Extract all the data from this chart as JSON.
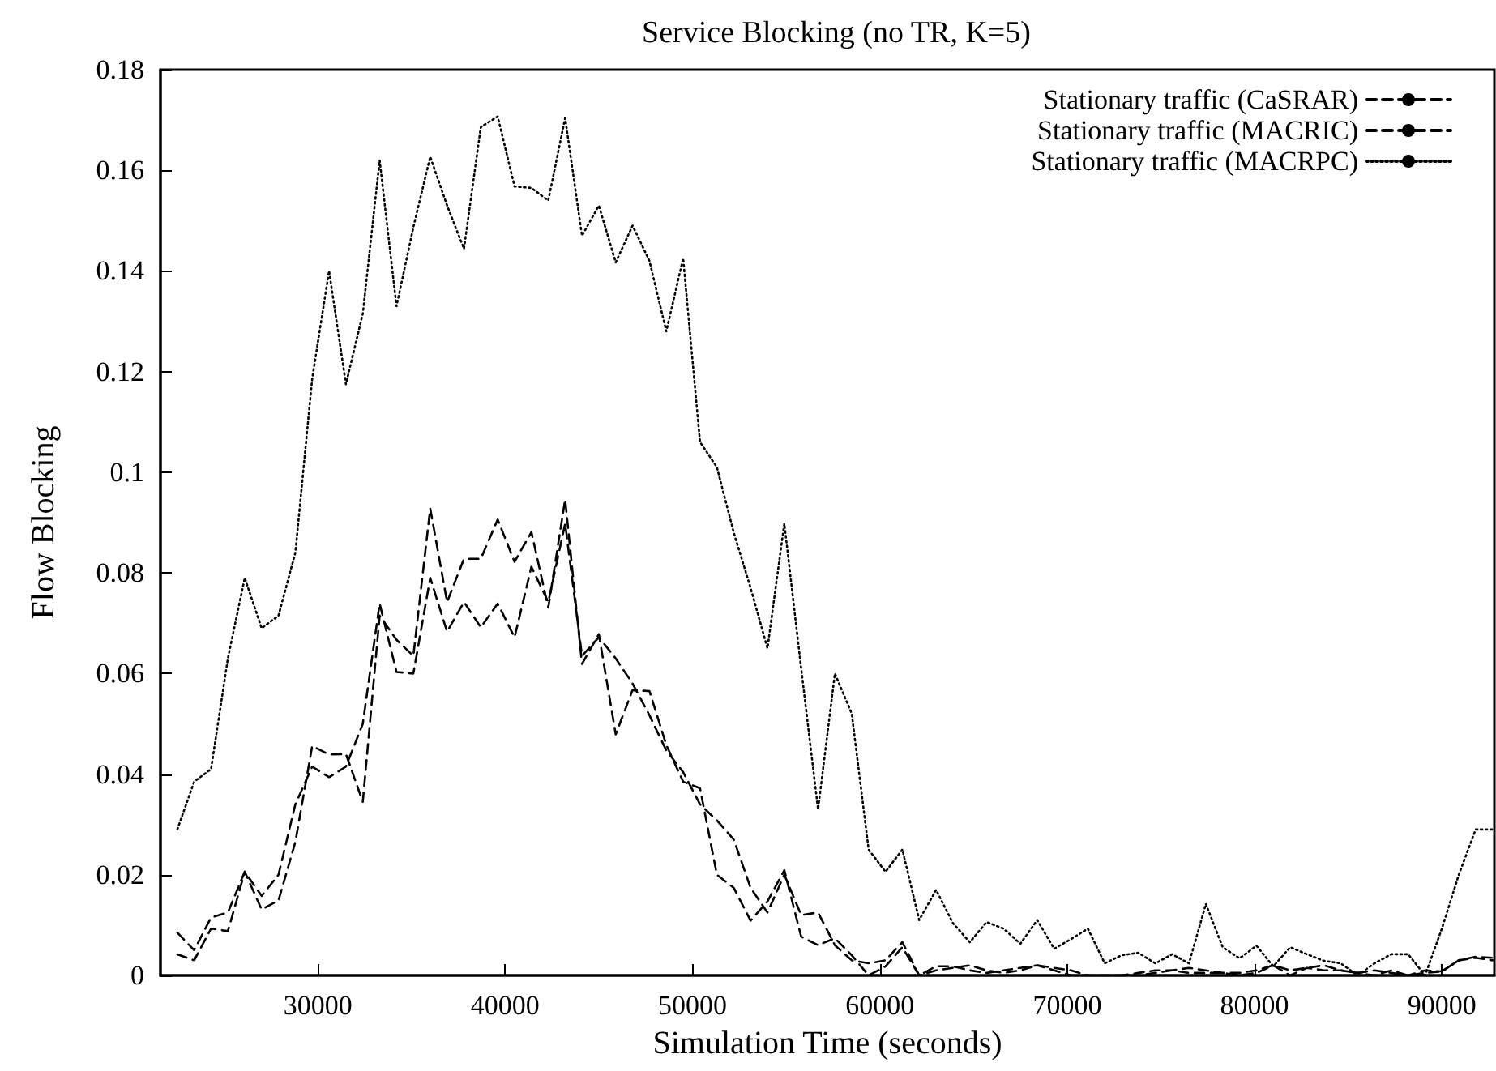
{
  "chart_data": {
    "type": "line",
    "title": "Service Blocking (no TR, K=5)",
    "xlabel": "Simulation Time (seconds)",
    "ylabel": "Flow Blocking",
    "x": [
      22500,
      23400,
      24300,
      25200,
      26100,
      27000,
      27900,
      28800,
      29700,
      30600,
      31500,
      32400,
      33300,
      34200,
      35100,
      36000,
      36900,
      37800,
      38700,
      39600,
      40500,
      41400,
      42300,
      43200,
      44100,
      45000,
      45900,
      46800,
      47700,
      48600,
      49500,
      50400,
      51300,
      52200,
      53100,
      54000,
      54900,
      55800,
      56700,
      57600,
      58500,
      59400,
      60300,
      61200,
      62100,
      63000,
      63900,
      64800,
      65700,
      66600,
      67500,
      68400,
      69300,
      70200,
      71100,
      72000,
      72900,
      73800,
      74700,
      75600,
      76500,
      77400,
      78300,
      79200,
      80100,
      81000,
      81900,
      82800,
      83700,
      84600,
      85500,
      86400,
      87300,
      88200,
      89100,
      90000,
      90900,
      91800,
      92700
    ],
    "series": [
      {
        "name": "Stationary traffic (CaSRAR)",
        "color": "#000000",
        "line_style": "dashed",
        "values": [
          0.0085,
          0.005,
          0.0115,
          0.0125,
          0.0206,
          0.0158,
          0.02,
          0.034,
          0.0415,
          0.0394,
          0.0415,
          0.05,
          0.0739,
          0.0603,
          0.06,
          0.079,
          0.0683,
          0.0742,
          0.0692,
          0.0739,
          0.0672,
          0.0812,
          0.0742,
          0.0898,
          0.0635,
          0.0672,
          0.063,
          0.058,
          0.0517,
          0.0447,
          0.0404,
          0.034,
          0.0308,
          0.027,
          0.0174,
          0.0125,
          0.02,
          0.012,
          0.0125,
          0.006,
          0.003,
          0.0024,
          0.003,
          0.0066,
          0,
          0.001,
          0.0015,
          0.002,
          0.001,
          0.0005,
          0.001,
          0.002,
          0.0015,
          0.001,
          0,
          0,
          0,
          0.0005,
          0.001,
          0.001,
          0.0015,
          0.001,
          0.0005,
          0.0005,
          0.001,
          0.002,
          0.001,
          0.0015,
          0.002,
          0.001,
          0.0005,
          0.001,
          0.0005,
          0,
          0.001,
          0.0008,
          0.003,
          0.0037,
          0.0035
        ]
      },
      {
        "name": "Stationary traffic (MACRIC)",
        "color": "#000000",
        "line_style": "dashed",
        "values": [
          0.0042,
          0.003,
          0.0093,
          0.0088,
          0.0206,
          0.0131,
          0.0149,
          0.0265,
          0.0456,
          0.0439,
          0.044,
          0.0345,
          0.0715,
          0.0667,
          0.0635,
          0.0928,
          0.0742,
          0.0828,
          0.0828,
          0.0906,
          0.0822,
          0.0881,
          0.0731,
          0.0946,
          0.0619,
          0.0678,
          0.0479,
          0.0567,
          0.0565,
          0.0458,
          0.0385,
          0.0372,
          0.02,
          0.0174,
          0.0109,
          0.0147,
          0.0209,
          0.0077,
          0.006,
          0.0074,
          0.004,
          0,
          0.0018,
          0.0056,
          0,
          0.0018,
          0.0018,
          0.001,
          0.0005,
          0.001,
          0.0015,
          0.002,
          0.001,
          0,
          0,
          0,
          0,
          0,
          0.0005,
          0.001,
          0.0005,
          0.0005,
          0.0005,
          0,
          0.0005,
          0.002,
          0,
          0.0015,
          0.001,
          0.001,
          0.0005,
          0,
          0.001,
          0,
          0.0005,
          0.0008,
          0.003,
          0.0035,
          0.003
        ]
      },
      {
        "name": "Stationary traffic (MACRPC)",
        "color": "#000000",
        "line_style": "dotted",
        "values": [
          0.029,
          0.0385,
          0.041,
          0.063,
          0.079,
          0.069,
          0.0715,
          0.084,
          0.1186,
          0.14,
          0.1175,
          0.1315,
          0.162,
          0.133,
          0.1487,
          0.1627,
          0.153,
          0.1444,
          0.1686,
          0.1707,
          0.1568,
          0.1565,
          0.154,
          0.1704,
          0.147,
          0.153,
          0.1417,
          0.149,
          0.142,
          0.128,
          0.1425,
          0.106,
          0.101,
          0.088,
          0.077,
          0.065,
          0.0898,
          0.061,
          0.033,
          0.06,
          0.052,
          0.025,
          0.0206,
          0.025,
          0.011,
          0.017,
          0.0104,
          0.0066,
          0.0106,
          0.0093,
          0.0063,
          0.011,
          0.0053,
          0.0072,
          0.0093,
          0.0024,
          0.004,
          0.0045,
          0.0024,
          0.0042,
          0.0024,
          0.0142,
          0.0056,
          0.0034,
          0.0059,
          0.0018,
          0.0056,
          0.0042,
          0.0029,
          0.0024,
          0,
          0.0024,
          0.0042,
          0.0042,
          0,
          0.0093,
          0.02,
          0.029,
          0.029
        ]
      }
    ],
    "xlim": [
      21600,
      92800
    ],
    "xticks": [
      30000,
      40000,
      50000,
      60000,
      70000,
      80000,
      90000
    ],
    "ylim": [
      0,
      0.18
    ],
    "yticks": [
      0,
      0.02,
      0.04,
      0.06,
      0.08,
      0.1,
      0.12,
      0.14,
      0.16,
      0.18
    ],
    "grid": false,
    "legend": "top right",
    "marker": "none"
  }
}
